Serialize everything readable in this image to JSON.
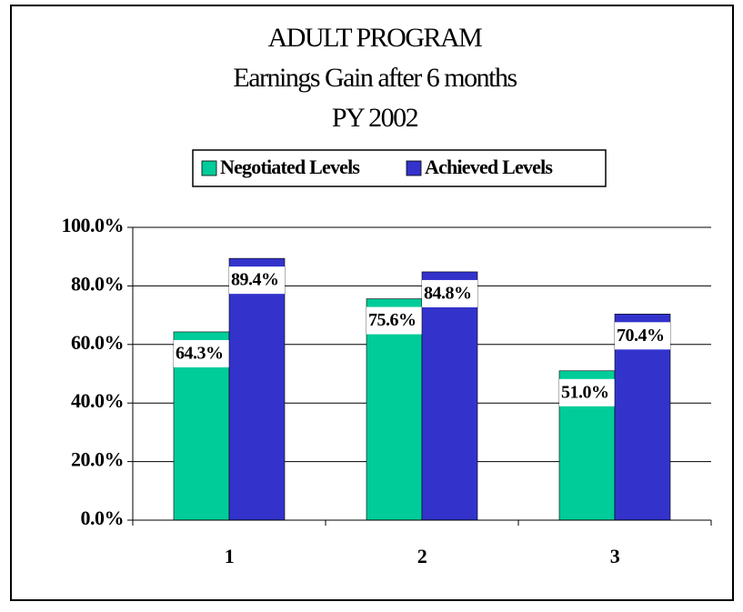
{
  "chart_data": {
    "type": "bar",
    "title": [
      "ADULT PROGRAM",
      "Earnings Gain after 6 months",
      "PY 2002"
    ],
    "categories": [
      "1",
      "2",
      "3"
    ],
    "series": [
      {
        "name": "Negotiated Levels",
        "color": "#00cc99",
        "values": [
          64.3,
          75.6,
          51.0
        ],
        "value_labels": [
          "64.3%",
          "75.6%",
          "51.0%"
        ]
      },
      {
        "name": "Achieved Levels",
        "color": "#3333cc",
        "values": [
          89.4,
          84.8,
          70.4
        ],
        "value_labels": [
          "89.4%",
          "84.8%",
          "70.4%"
        ]
      }
    ],
    "ylim": [
      0,
      100
    ],
    "yticks": [
      {
        "value": 0,
        "label": "0.0%"
      },
      {
        "value": 20,
        "label": "20.0%"
      },
      {
        "value": 40,
        "label": "40.0%"
      },
      {
        "value": 60,
        "label": "60.0%"
      },
      {
        "value": 80,
        "label": "80.0%"
      },
      {
        "value": 100,
        "label": "100.0%"
      }
    ],
    "grid": true
  }
}
